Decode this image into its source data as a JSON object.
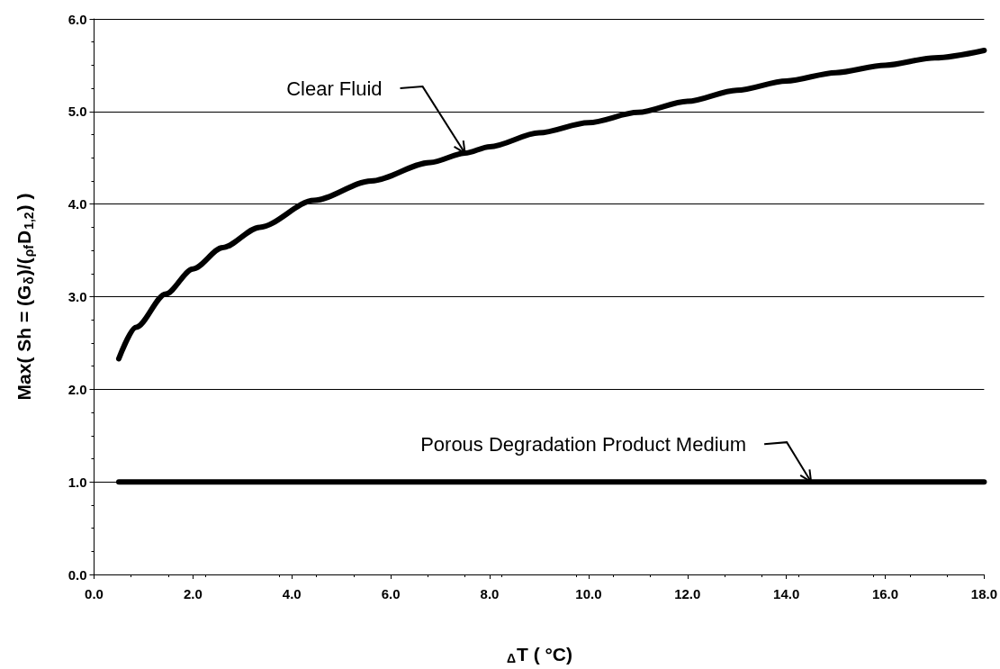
{
  "chart_data": {
    "type": "line",
    "xlabel": "$_{Δ}$T ( °C)",
    "ylabel": "Max( Sh = (G$_{δ}$)/($_{ρf}$D$_{1,2}$) )",
    "series": [
      {
        "color": "#000000",
        "x": [
          0.5,
          0.85,
          1.45,
          2,
          2.6,
          3.35,
          4.45,
          5.6,
          6.8,
          7.5,
          8,
          9,
          10,
          11,
          12,
          13,
          14,
          15,
          16,
          17,
          18
        ],
        "values": [
          2.33,
          2.67,
          3.03,
          3.3,
          3.53,
          3.75,
          4.04,
          4.25,
          4.45,
          4.55,
          4.62,
          4.77,
          4.88,
          4.99,
          5.11,
          5.23,
          5.33,
          5.42,
          5.5,
          5.58,
          5.66
        ]
      },
      {
        "color": "#000000",
        "x": [
          0.5,
          18
        ],
        "values": [
          1.0,
          1.0
        ]
      }
    ],
    "xlim": [
      0,
      18
    ],
    "xticks": [
      {
        "value": 0,
        "label": "0.0"
      },
      {
        "value": 2,
        "label": "2.0"
      },
      {
        "value": 4,
        "label": "4.0"
      },
      {
        "value": 6,
        "label": "6.0"
      },
      {
        "value": 8,
        "label": "8.0"
      },
      {
        "value": 10,
        "label": "10.0"
      },
      {
        "value": 12,
        "label": "12.0"
      },
      {
        "value": 14,
        "label": "14.0"
      },
      {
        "value": 16,
        "label": "16.0"
      },
      {
        "value": 18,
        "label": "18.0"
      }
    ],
    "ylim": [
      0,
      6
    ],
    "yticks": [
      {
        "value": 0,
        "label": "0.0"
      },
      {
        "value": 1,
        "label": "1.0"
      },
      {
        "value": 2,
        "label": "2.0"
      },
      {
        "value": 3,
        "label": "3.0"
      },
      {
        "value": 4,
        "label": "4.0"
      },
      {
        "value": 5,
        "label": "5.0"
      },
      {
        "value": 6,
        "label": "6.0"
      }
    ],
    "grid": "y",
    "marker": "none",
    "line_style": "solid",
    "annotations": [
      {
        "text": "Clear Fluid",
        "x": 7.5,
        "y": 4.55
      },
      {
        "text": "Porous Degradation Product Medium",
        "x": 14.5,
        "y": 1.0
      }
    ]
  }
}
